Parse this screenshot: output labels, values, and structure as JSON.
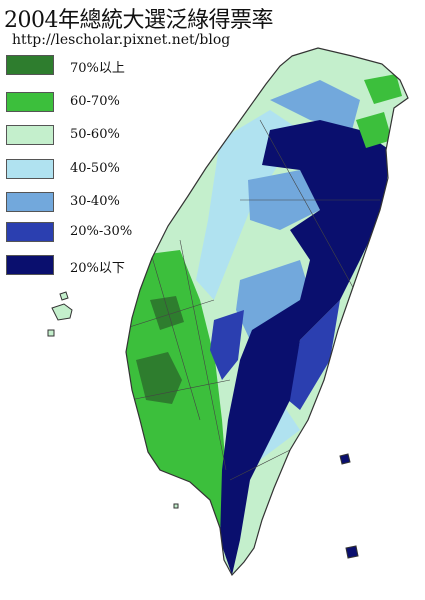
{
  "title": "2004年總統大選泛綠得票率",
  "subtitle": "http://lescholar.pixnet.net/blog",
  "legend": [
    {
      "label": "70%以上",
      "color": "#2e7d2e"
    },
    {
      "label": "60-70%",
      "color": "#3cbf3c"
    },
    {
      "label": "50-60%",
      "color": "#c4efcc"
    },
    {
      "label": "40-50%",
      "color": "#b0e2f0"
    },
    {
      "label": "30-40%",
      "color": "#72a8dc"
    },
    {
      "label": "20%-30%",
      "color": "#2b3fb0"
    },
    {
      "label": "20%以下",
      "color": "#0a0f6e"
    }
  ],
  "colors": {
    "background": "#ffffff",
    "border": "#333333"
  }
}
